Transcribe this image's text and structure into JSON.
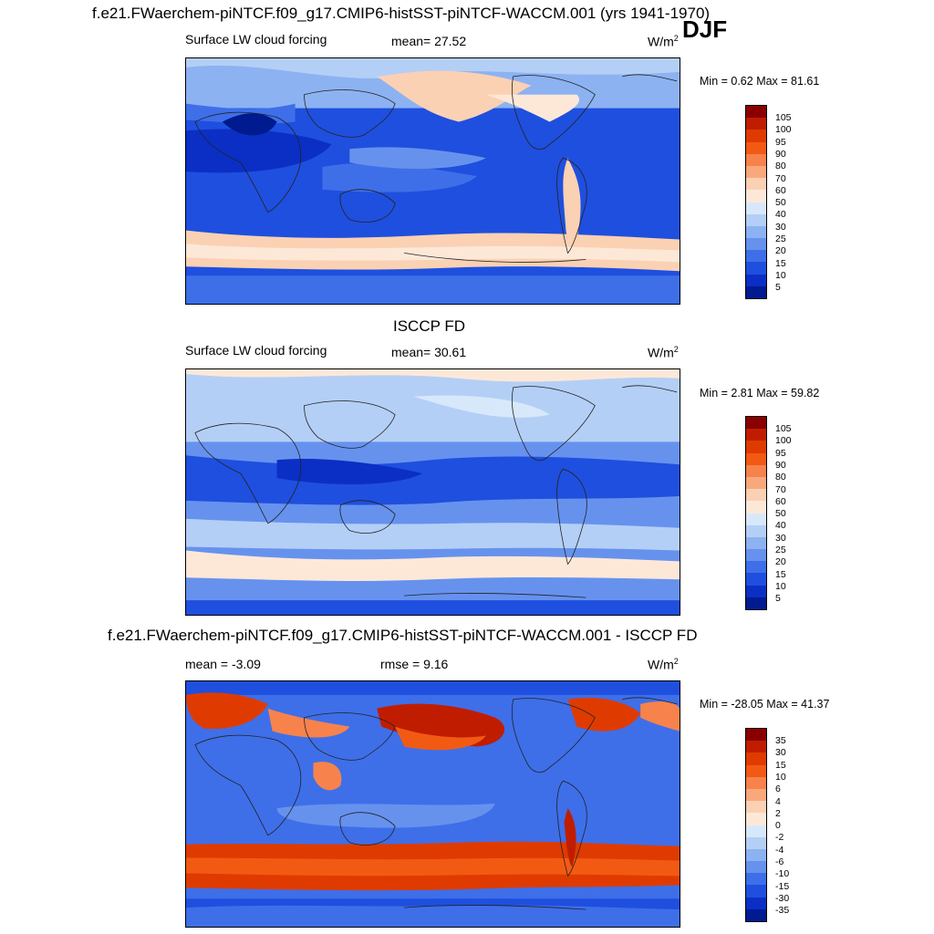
{
  "title_top": "f.e21.FWaerchem-piNTCF.f09_g17.CMIP6-histSST-piNTCF-WACCM.001 (yrs 1941-1970)",
  "season": "DJF",
  "panels": [
    {
      "title": "",
      "left_label": "Surface LW cloud forcing",
      "stat_label": "mean=",
      "stat_value": "27.52",
      "stat2_label": "",
      "stat2_value": "",
      "units": "W/m",
      "units_exp": "2",
      "minmax": "Min =   0.62 Max =  81.61",
      "colorbar_labels": [
        "105",
        "100",
        "95",
        "90",
        "80",
        "70",
        "60",
        "50",
        "40",
        "30",
        "25",
        "20",
        "15",
        "10",
        "5"
      ]
    },
    {
      "title": "ISCCP FD",
      "left_label": "Surface LW cloud forcing",
      "stat_label": "mean=",
      "stat_value": "30.61",
      "stat2_label": "",
      "stat2_value": "",
      "units": "W/m",
      "units_exp": "2",
      "minmax": "Min =   2.81 Max =  59.82",
      "colorbar_labels": [
        "105",
        "100",
        "95",
        "90",
        "80",
        "70",
        "60",
        "50",
        "40",
        "30",
        "25",
        "20",
        "15",
        "10",
        "5"
      ]
    },
    {
      "title": "f.e21.FWaerchem-piNTCF.f09_g17.CMIP6-histSST-piNTCF-WACCM.001 - ISCCP FD",
      "left_label": "",
      "stat_label": "mean = ",
      "stat_value": "-3.09",
      "stat2_label": "rmse = ",
      "stat2_value": "9.16",
      "units": "W/m",
      "units_exp": "2",
      "minmax": "Min = -28.05 Max =  41.37",
      "colorbar_labels": [
        "35",
        "30",
        "15",
        "10",
        "6",
        "4",
        "2",
        "0",
        "-2",
        "-4",
        "-6",
        "-10",
        "-15",
        "-30",
        "-35"
      ]
    }
  ],
  "colors": {
    "colorbar_scale": [
      "#8a0000",
      "#c01d00",
      "#df3b00",
      "#f25a14",
      "#f8824c",
      "#f9a87c",
      "#fbd1b3",
      "#fde8d8",
      "#d8e8fb",
      "#b4cff6",
      "#8db2f2",
      "#6692ee",
      "#3e6fe9",
      "#1f4fde",
      "#0b2fc4",
      "#001a8f"
    ],
    "map_background": "#1f4fde"
  }
}
